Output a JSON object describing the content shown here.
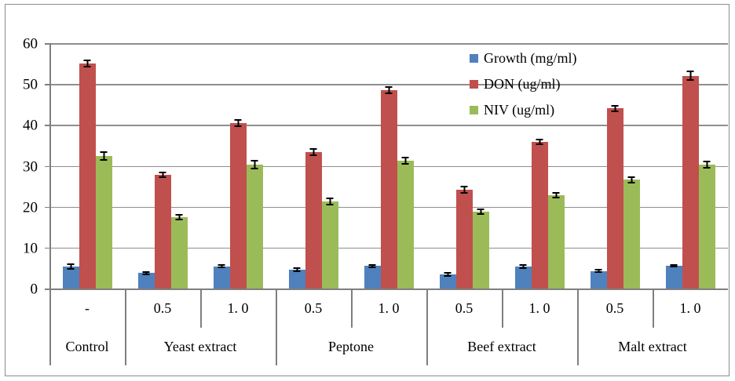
{
  "chart_data": {
    "type": "bar",
    "title": "",
    "xlabel": "",
    "ylabel": "",
    "ylim": [
      0,
      60
    ],
    "yticks": [
      0,
      10,
      20,
      30,
      40,
      50,
      60
    ],
    "grid": true,
    "error_bars": true,
    "legend_position": "inside-top-right",
    "categories": [
      "-",
      "0.5",
      "1. 0",
      "0.5",
      "1. 0",
      "0.5",
      "1. 0",
      "0.5",
      "1. 0"
    ],
    "category_groups": [
      {
        "label": "Control",
        "span": 1
      },
      {
        "label": "Yeast extract",
        "span": 2
      },
      {
        "label": "Peptone",
        "span": 2
      },
      {
        "label": "Beef extract",
        "span": 2
      },
      {
        "label": "Malt extract",
        "span": 2
      }
    ],
    "series": [
      {
        "name": "Growth (mg/ml)",
        "color": "#4F81BD",
        "values": [
          5.4,
          3.8,
          5.4,
          4.6,
          5.5,
          3.5,
          5.4,
          4.3,
          5.5
        ],
        "errors": [
          0.7,
          0.5,
          0.5,
          0.6,
          0.5,
          0.6,
          0.6,
          0.5,
          0.4
        ]
      },
      {
        "name": "DON (ug/ml)",
        "color": "#C0504D",
        "values": [
          55.0,
          27.8,
          40.4,
          33.4,
          48.5,
          24.2,
          35.8,
          44.0,
          52.0
        ],
        "errors": [
          0.9,
          0.8,
          1.0,
          1.0,
          1.0,
          1.0,
          0.8,
          0.9,
          1.2
        ]
      },
      {
        "name": "NIV (ug/ml)",
        "color": "#9BBB59",
        "values": [
          32.4,
          17.4,
          30.3,
          21.3,
          31.2,
          18.8,
          22.8,
          26.6,
          30.3
        ],
        "errors": [
          1.2,
          0.8,
          1.2,
          0.9,
          1.0,
          0.8,
          0.8,
          0.9,
          1.0
        ]
      }
    ]
  },
  "colors": {
    "background": "#FFFFFF",
    "border": "#8C8C8C",
    "gridline": "#8E8E8E",
    "axis": "#7F7F7F",
    "error_bar": "#000000",
    "text": "#000000"
  }
}
